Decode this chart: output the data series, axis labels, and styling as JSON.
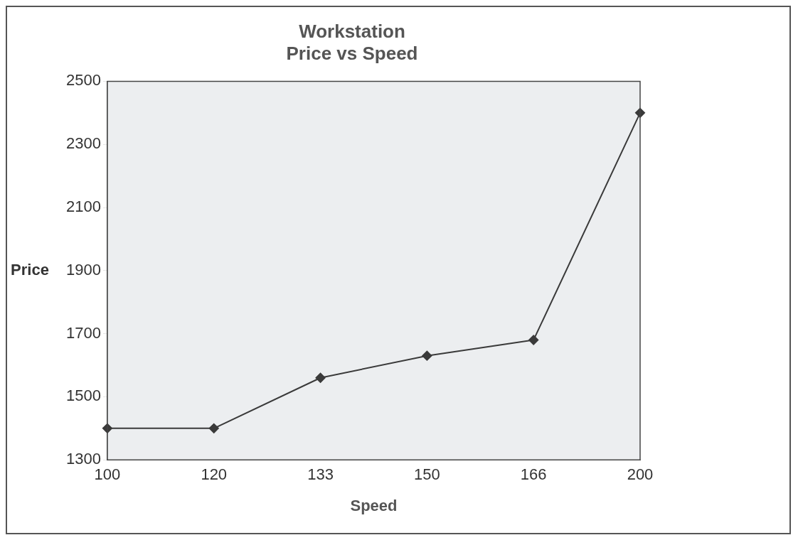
{
  "chart_data": {
    "type": "line",
    "title": [
      "Workstation",
      "Price vs Speed"
    ],
    "xlabel": "Speed",
    "ylabel": "Price",
    "categories": [
      "100",
      "120",
      "133",
      "150",
      "166",
      "200"
    ],
    "series": [
      {
        "color": "#3a3a3a",
        "values": [
          1400,
          1400,
          1560,
          1630,
          1680,
          2400
        ]
      }
    ],
    "ylim": [
      1300,
      2500
    ],
    "yticks": [
      1300,
      1500,
      1700,
      1900,
      2100,
      2300,
      2500
    ],
    "grid": false,
    "legend": false,
    "marker": "diamond",
    "line_style": "solid"
  }
}
